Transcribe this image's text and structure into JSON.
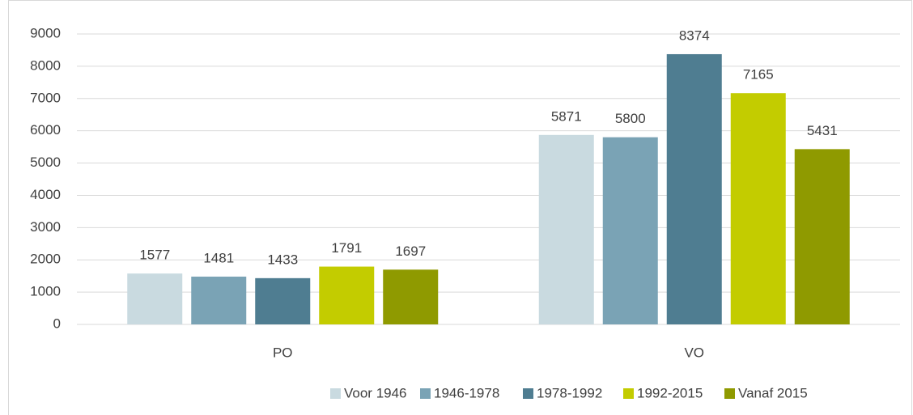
{
  "chart_data": {
    "type": "bar",
    "categories": [
      "PO",
      "VO"
    ],
    "series": [
      {
        "name": "Voor 1946",
        "color": "#c9dae0",
        "values": [
          1577,
          5871
        ]
      },
      {
        "name": "1946-1978",
        "color": "#7aa3b5",
        "values": [
          1481,
          5800
        ]
      },
      {
        "name": "1978-1992",
        "color": "#4f7d91",
        "values": [
          1433,
          8374
        ]
      },
      {
        "name": "1992-2015",
        "color": "#c3cc00",
        "values": [
          1791,
          7165
        ]
      },
      {
        "name": "Vanaf 2015",
        "color": "#8f9a00",
        "values": [
          1697,
          5431
        ]
      }
    ],
    "ylim": [
      0,
      9000
    ],
    "yticks": [
      0,
      1000,
      2000,
      3000,
      4000,
      5000,
      6000,
      7000,
      8000,
      9000
    ],
    "grid": true,
    "legend": "bottom"
  }
}
